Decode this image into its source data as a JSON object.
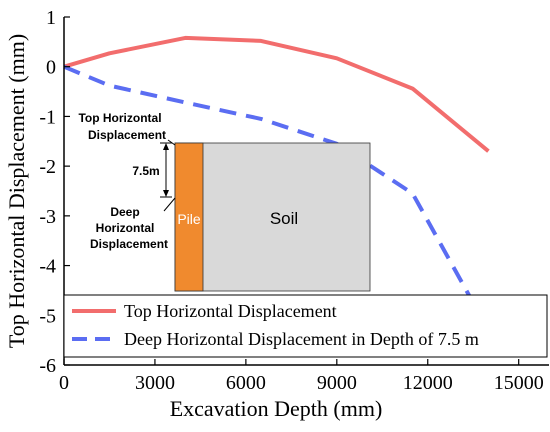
{
  "chart_data": {
    "type": "line",
    "xlabel": "Excavation Depth (mm)",
    "ylabel": "Top Horizontal Displacement (mm)",
    "xlim": [
      0,
      16000
    ],
    "ylim": [
      -6,
      1
    ],
    "xticks": [
      0,
      3000,
      6000,
      9000,
      12000,
      15000
    ],
    "yticks": [
      1,
      0,
      -1,
      -2,
      -3,
      -4,
      -5,
      -6
    ],
    "xtick_labels": [
      "0",
      "3000",
      "6000",
      "9000",
      "12000",
      "15000"
    ],
    "ytick_labels": [
      "1",
      "0",
      "-1",
      "-2",
      "-3",
      "-4",
      "-5",
      "-6"
    ],
    "grid": false,
    "legend_placement": "bottom",
    "series": [
      {
        "name": "Top Horizontal Displacement",
        "color": "#f26d6d",
        "style": "solid",
        "x": [
          0,
          1500,
          4000,
          6500,
          9000,
          11500,
          14000
        ],
        "y": [
          0,
          0.27,
          0.58,
          0.52,
          0.17,
          -0.44,
          -1.7
        ]
      },
      {
        "name": "Deep Horizontal Displacement in Depth of 7.5 m",
        "color": "#5b6df2",
        "style": "dashed",
        "x": [
          0,
          1500,
          4000,
          6500,
          9000,
          11500,
          14000
        ],
        "y": [
          0,
          -0.38,
          -0.72,
          -1.05,
          -1.55,
          -2.55,
          -5.3
        ]
      }
    ]
  },
  "inset": {
    "top_label_line1": "Top Horizontal",
    "top_label_line2": "Displacement",
    "depth_label": "7.5m",
    "deep_label_line1": "Deep",
    "deep_label_line2": "Horizontal",
    "deep_label_line3": "Displacement",
    "pile_label": "Pile",
    "soil_label": "Soil",
    "pile_color": "#f08a2e",
    "soil_color": "#d9d9d9"
  }
}
